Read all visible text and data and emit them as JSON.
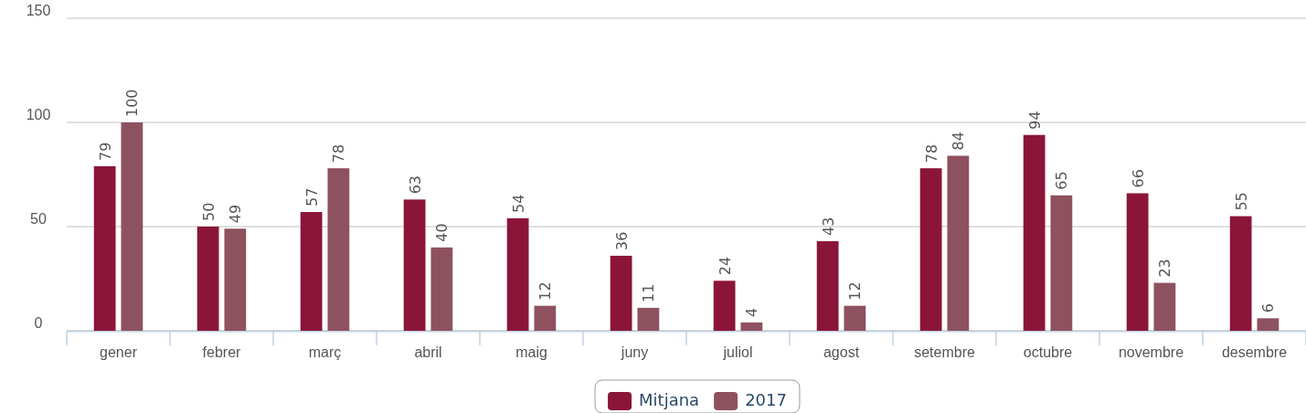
{
  "chart_data": {
    "type": "bar",
    "categories": [
      "gener",
      "febrer",
      "març",
      "abril",
      "maig",
      "juny",
      "juliol",
      "agost",
      "setembre",
      "octubre",
      "novembre",
      "desembre"
    ],
    "series": [
      {
        "name": "Mitjana",
        "color": "#8b1538",
        "values": [
          79,
          50,
          57,
          63,
          54,
          36,
          24,
          43,
          78,
          94,
          66,
          55
        ]
      },
      {
        "name": "2017",
        "color": "#8e5160",
        "values": [
          100,
          49,
          78,
          40,
          12,
          11,
          4,
          12,
          84,
          65,
          23,
          6
        ]
      }
    ],
    "ylim": [
      0,
      150
    ],
    "yticks": [
      0,
      50,
      100,
      150
    ],
    "grid": "y",
    "legend": "bottom",
    "data_labels": true
  }
}
